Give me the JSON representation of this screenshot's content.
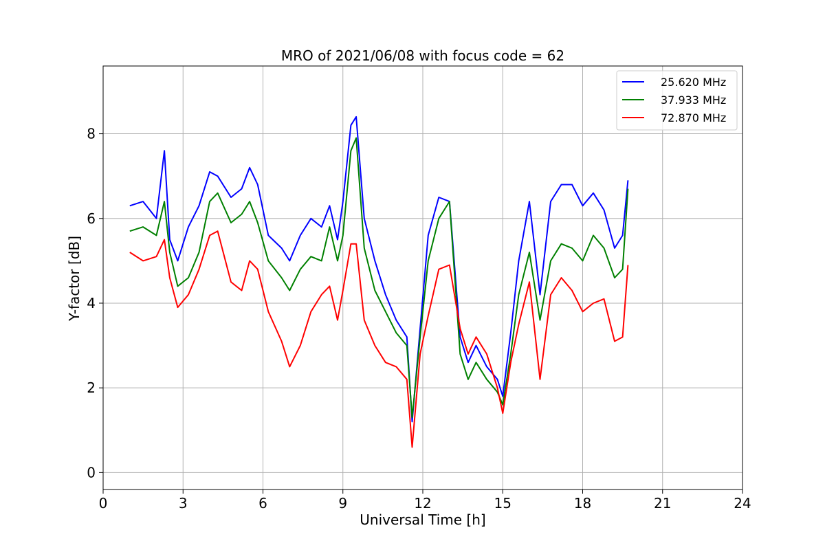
{
  "chart_data": {
    "type": "line",
    "title": "MRO of 2021/06/08 with focus code = 62",
    "xlabel": "Universal Time [h]",
    "ylabel": "Y-factor [dB]",
    "xlim": [
      0,
      24
    ],
    "ylim": [
      -0.4,
      9.6
    ],
    "xticks": [
      0,
      3,
      6,
      9,
      12,
      15,
      18,
      21,
      24
    ],
    "yticks": [
      0,
      2,
      4,
      6,
      8
    ],
    "grid": true,
    "legend_position": "upper right",
    "series": [
      {
        "name": "25.620 MHz",
        "color": "#0000ff",
        "x": [
          1.0,
          1.5,
          2.0,
          2.3,
          2.5,
          2.8,
          3.2,
          3.6,
          4.0,
          4.3,
          4.8,
          5.2,
          5.5,
          5.8,
          6.2,
          6.7,
          7.0,
          7.4,
          7.8,
          8.2,
          8.5,
          8.8,
          9.0,
          9.3,
          9.5,
          9.8,
          10.2,
          10.6,
          11.0,
          11.4,
          11.6,
          11.9,
          12.2,
          12.6,
          13.0,
          13.4,
          13.7,
          14.0,
          14.4,
          14.8,
          15.0,
          15.3,
          15.6,
          16.0,
          16.4,
          16.8,
          17.2,
          17.6,
          18.0,
          18.4,
          18.8,
          19.2,
          19.5,
          19.7
        ],
        "y": [
          6.3,
          6.4,
          6.0,
          7.6,
          5.5,
          5.0,
          5.8,
          6.3,
          7.1,
          7.0,
          6.5,
          6.7,
          7.2,
          6.8,
          5.6,
          5.3,
          5.0,
          5.6,
          6.0,
          5.8,
          6.3,
          5.5,
          6.4,
          8.2,
          8.4,
          6.0,
          5.0,
          4.2,
          3.6,
          3.2,
          1.2,
          3.4,
          5.6,
          6.5,
          6.4,
          3.2,
          2.6,
          3.0,
          2.5,
          2.2,
          1.8,
          3.3,
          5.0,
          6.4,
          4.2,
          6.4,
          6.8,
          6.8,
          6.3,
          6.6,
          6.2,
          5.3,
          5.6,
          6.9
        ]
      },
      {
        "name": "37.933 MHz",
        "color": "#008000",
        "x": [
          1.0,
          1.5,
          2.0,
          2.3,
          2.5,
          2.8,
          3.2,
          3.6,
          4.0,
          4.3,
          4.8,
          5.2,
          5.5,
          5.8,
          6.2,
          6.7,
          7.0,
          7.4,
          7.8,
          8.2,
          8.5,
          8.8,
          9.0,
          9.3,
          9.5,
          9.8,
          10.2,
          10.6,
          11.0,
          11.4,
          11.6,
          11.9,
          12.2,
          12.6,
          13.0,
          13.4,
          13.7,
          14.0,
          14.4,
          14.8,
          15.0,
          15.3,
          15.6,
          16.0,
          16.4,
          16.8,
          17.2,
          17.6,
          18.0,
          18.4,
          18.8,
          19.2,
          19.5,
          19.7
        ],
        "y": [
          5.7,
          5.8,
          5.6,
          6.4,
          5.2,
          4.4,
          4.6,
          5.2,
          6.4,
          6.6,
          5.9,
          6.1,
          6.4,
          5.9,
          5.0,
          4.6,
          4.3,
          4.8,
          5.1,
          5.0,
          5.8,
          5.0,
          5.6,
          7.6,
          7.9,
          5.3,
          4.3,
          3.8,
          3.3,
          3.0,
          1.3,
          3.2,
          5.0,
          6.0,
          6.4,
          2.8,
          2.2,
          2.6,
          2.2,
          1.9,
          1.6,
          2.8,
          4.2,
          5.2,
          3.6,
          5.0,
          5.4,
          5.3,
          5.0,
          5.6,
          5.3,
          4.6,
          4.8,
          6.7
        ]
      },
      {
        "name": "72.870 MHz",
        "color": "#ff0000",
        "x": [
          1.0,
          1.5,
          2.0,
          2.3,
          2.5,
          2.8,
          3.2,
          3.6,
          4.0,
          4.3,
          4.8,
          5.2,
          5.5,
          5.8,
          6.2,
          6.7,
          7.0,
          7.4,
          7.8,
          8.2,
          8.5,
          8.8,
          9.0,
          9.3,
          9.5,
          9.8,
          10.2,
          10.6,
          11.0,
          11.4,
          11.6,
          11.9,
          12.2,
          12.6,
          13.0,
          13.4,
          13.7,
          14.0,
          14.4,
          14.8,
          15.0,
          15.3,
          15.6,
          16.0,
          16.4,
          16.8,
          17.2,
          17.6,
          18.0,
          18.4,
          18.8,
          19.2,
          19.5,
          19.7
        ],
        "y": [
          5.2,
          5.0,
          5.1,
          5.5,
          4.6,
          3.9,
          4.2,
          4.8,
          5.6,
          5.7,
          4.5,
          4.3,
          5.0,
          4.8,
          3.8,
          3.1,
          2.5,
          3.0,
          3.8,
          4.2,
          4.4,
          3.6,
          4.3,
          5.4,
          5.4,
          3.6,
          3.0,
          2.6,
          2.5,
          2.2,
          0.6,
          2.8,
          3.7,
          4.8,
          4.9,
          3.4,
          2.8,
          3.2,
          2.8,
          2.0,
          1.4,
          2.6,
          3.5,
          4.5,
          2.2,
          4.2,
          4.6,
          4.3,
          3.8,
          4.0,
          4.1,
          3.1,
          3.2,
          4.9
        ]
      }
    ]
  }
}
